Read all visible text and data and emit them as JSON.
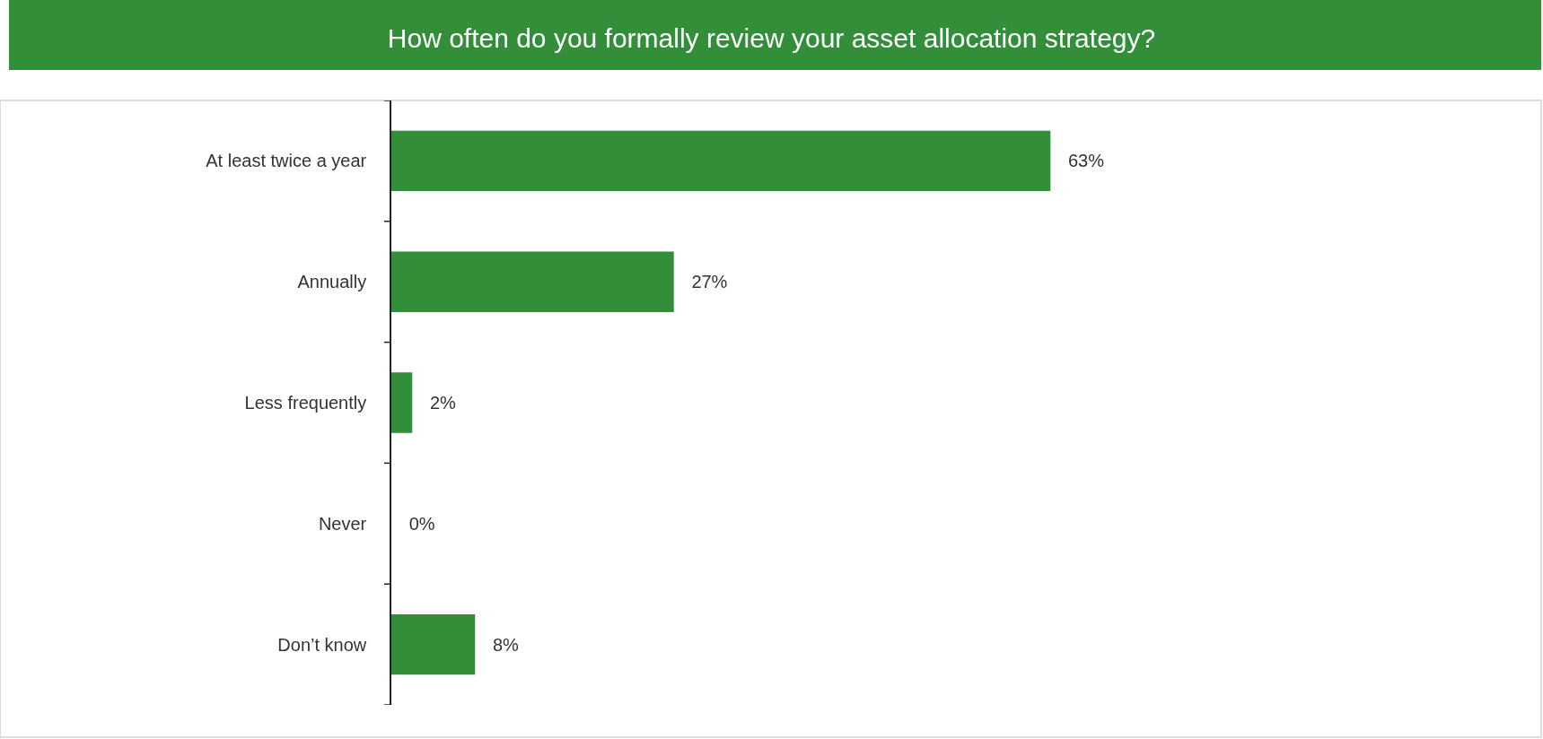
{
  "chart_data": {
    "type": "bar",
    "orientation": "horizontal",
    "title": "How often do you formally review your asset allocation strategy?",
    "categories": [
      "At least twice a year",
      "Annually",
      "Less frequently",
      "Never",
      "Don’t know"
    ],
    "values": [
      63,
      27,
      2,
      0,
      8
    ],
    "color": "#338e3a",
    "value_labels": [
      "63%",
      "27%",
      "2%",
      "0%",
      "8%"
    ],
    "tick_labels": "y",
    "grid": false,
    "legend": false
  }
}
